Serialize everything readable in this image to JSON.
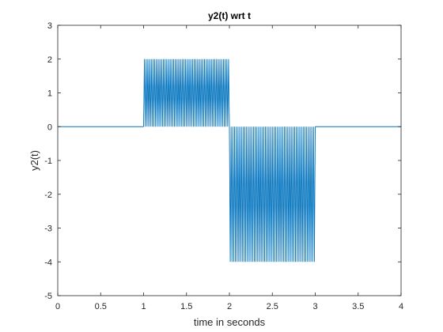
{
  "chart_data": {
    "type": "line",
    "title": "y2(t) wrt t",
    "xlabel": "time in seconds",
    "ylabel": "y2(t)",
    "xlim": [
      0,
      4
    ],
    "ylim": [
      -5,
      3
    ],
    "xticks": [
      0,
      0.5,
      1,
      1.5,
      2,
      2.5,
      3,
      3.5,
      4
    ],
    "xtick_labels": [
      "0",
      "0.5",
      "1",
      "1.5",
      "2",
      "2.5",
      "3",
      "3.5",
      "4"
    ],
    "yticks": [
      -5,
      -4,
      -3,
      -2,
      -1,
      0,
      1,
      2,
      3
    ],
    "ytick_labels": [
      "-5",
      "-4",
      "-3",
      "-2",
      "-1",
      "0",
      "1",
      "2",
      "3"
    ],
    "grid": false,
    "series": [
      {
        "color": "#0072BD",
        "segments": [
          {
            "x_start": 0,
            "x_end": 1,
            "min": 0,
            "max": 0,
            "oscillating": false
          },
          {
            "x_start": 1,
            "x_end": 2,
            "min": 0,
            "max": 2,
            "oscillating": true,
            "cycles": 50
          },
          {
            "x_start": 2,
            "x_end": 3,
            "min": -4,
            "max": 0,
            "oscillating": true,
            "cycles": 50
          },
          {
            "x_start": 3,
            "x_end": 4,
            "min": 0,
            "max": 0,
            "oscillating": false
          }
        ]
      }
    ]
  }
}
